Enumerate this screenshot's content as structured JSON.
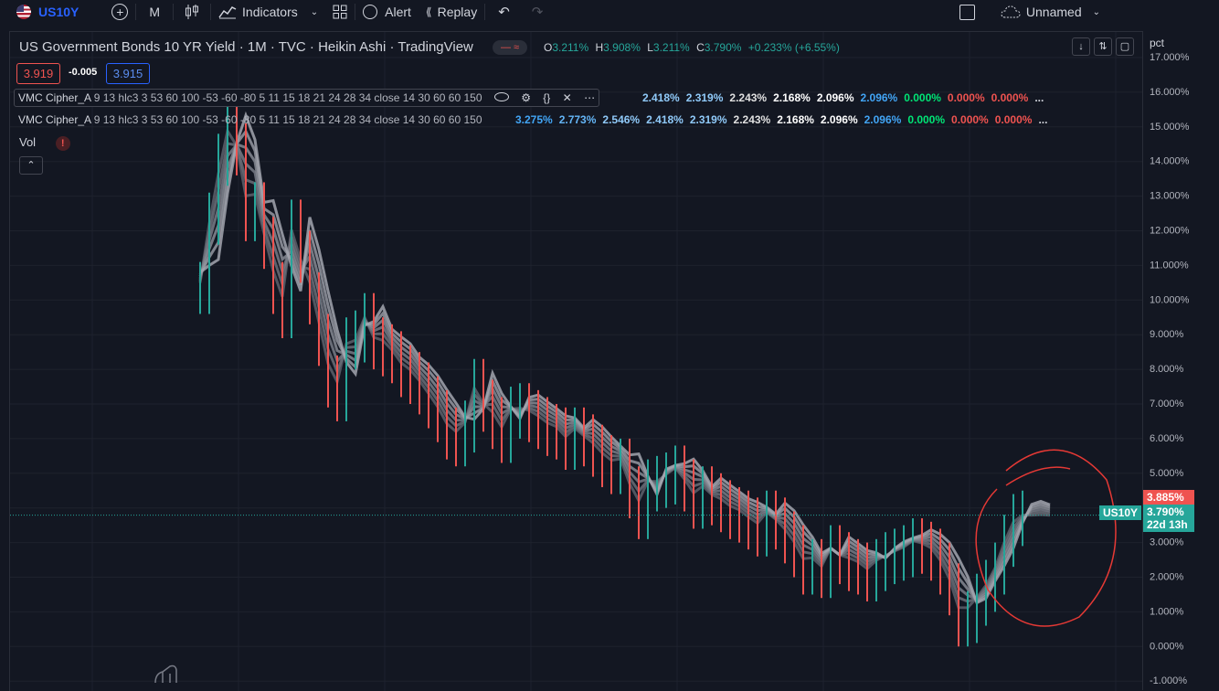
{
  "toolbar": {
    "symbol": "US10Y",
    "interval": "M",
    "indicators_label": "Indicators",
    "alert_label": "Alert",
    "replay_label": "Replay",
    "layout_name": "Unnamed"
  },
  "legend": {
    "title_main": "US Government Bonds 10 YR Yield · 1M · TVC · Heikin Ashi · TradingView",
    "ohlc": {
      "o_label": "O",
      "o": "3.211%",
      "h_label": "H",
      "h": "3.908%",
      "l_label": "L",
      "l": "3.211%",
      "c_label": "C",
      "c": "3.790%",
      "change": "+0.233% (+6.55%)"
    },
    "sell_price": "3.919",
    "spread": "-0.005",
    "buy_price": "3.915",
    "indicator1": {
      "name": "VMC Cipher_A",
      "params": "9 13 hlc3 3 53 60 100 -53 -60 -80 5 11 15 18 21 24 28 34 close 14 30 60 60 150",
      "values": [
        "2.418%",
        "2.319%",
        "2.243%",
        "2.168%",
        "2.096%",
        "2.096%",
        "0.000%",
        "0.000%",
        "0.000%",
        "..."
      ]
    },
    "indicator2": {
      "name": "VMC Cipher_A",
      "params": "9 13 hlc3 3 53 60 100 -53 -60 -80 5 11 15 18 21 24 28 34 close 14 30 60 60 150",
      "values": [
        "3.275%",
        "2.773%",
        "2.546%",
        "2.418%",
        "2.319%",
        "2.243%",
        "2.168%",
        "2.096%",
        "2.096%",
        "0.000%",
        "0.000%",
        "0.000%",
        "..."
      ]
    },
    "vol_label": "Vol"
  },
  "axis": {
    "unit": "pct",
    "ticks": [
      "17.000%",
      "16.000%",
      "15.000%",
      "14.000%",
      "13.000%",
      "12.000%",
      "11.000%",
      "10.000%",
      "9.000%",
      "8.000%",
      "7.000%",
      "6.000%",
      "5.000%",
      "4.000%",
      "3.000%",
      "2.000%",
      "1.000%",
      "0.000%",
      "-1.000%"
    ],
    "tick_values": [
      17,
      16,
      15,
      14,
      13,
      12,
      11,
      10,
      9,
      8,
      7,
      6,
      5,
      4,
      3,
      2,
      1,
      0,
      -1
    ],
    "high_tag": "3.885%",
    "symbol_tag": "US10Y",
    "last_price": "3.790%",
    "countdown": "22d 13h"
  },
  "colors": {
    "background": "#131722",
    "up": "#26a69a",
    "down": "#ef5350",
    "blue_text": "#2962ff",
    "price_line": "#26a69a"
  },
  "chart_data": {
    "type": "line",
    "ylim": [
      -1,
      17
    ],
    "series_x": [
      0,
      10,
      20,
      30,
      40,
      50,
      60,
      70,
      80,
      90,
      100,
      110,
      120,
      130,
      140,
      150,
      160,
      170,
      180,
      190,
      200,
      210,
      220,
      230,
      240,
      250,
      260,
      270,
      280,
      290,
      300,
      310,
      320,
      330,
      340,
      350,
      360,
      370,
      380,
      390,
      400,
      410,
      420,
      430,
      440,
      450,
      460,
      470,
      480,
      490,
      500,
      510,
      520,
      530,
      540,
      550,
      560,
      570,
      580,
      590,
      600,
      610,
      620,
      630,
      640,
      650,
      660,
      670,
      680,
      690,
      700,
      710,
      720,
      730,
      740,
      750,
      760,
      770,
      780,
      790,
      800,
      810,
      820,
      830,
      840,
      850,
      860,
      870,
      880,
      890,
      900,
      910,
      920,
      930
    ],
    "close": [
      10.5,
      12.5,
      14.2,
      15.3,
      14.5,
      12.6,
      12.8,
      11.8,
      10.5,
      9.8,
      12.3,
      11.4,
      10.2,
      9.0,
      7.8,
      7.4,
      8.9,
      9.1,
      9.6,
      8.9,
      8.7,
      8.5,
      8.1,
      7.9,
      7.6,
      7.2,
      6.8,
      6.3,
      6.1,
      6.5,
      7.7,
      7.1,
      6.6,
      6.2,
      6.9,
      7.0,
      6.8,
      6.6,
      6.4,
      6.3,
      6.0,
      6.3,
      6.1,
      5.8,
      5.5,
      5.3,
      5.4,
      4.6,
      4.0,
      4.8,
      4.9,
      5.0,
      5.2,
      4.8,
      4.3,
      4.6,
      4.4,
      4.2,
      4.0,
      3.9,
      3.7,
      3.5,
      3.9,
      3.7,
      3.3,
      2.9,
      2.4,
      2.5,
      2.3,
      2.9,
      2.7,
      2.5,
      2.4,
      2.2,
      2.5,
      2.7,
      2.8,
      2.9,
      3.1,
      3.0,
      2.8,
      2.4,
      1.8,
      0.9,
      1.0,
      1.5,
      1.9,
      2.4,
      3.2,
      3.8,
      3.9,
      3.79,
      3.79,
      3.79
    ]
  }
}
